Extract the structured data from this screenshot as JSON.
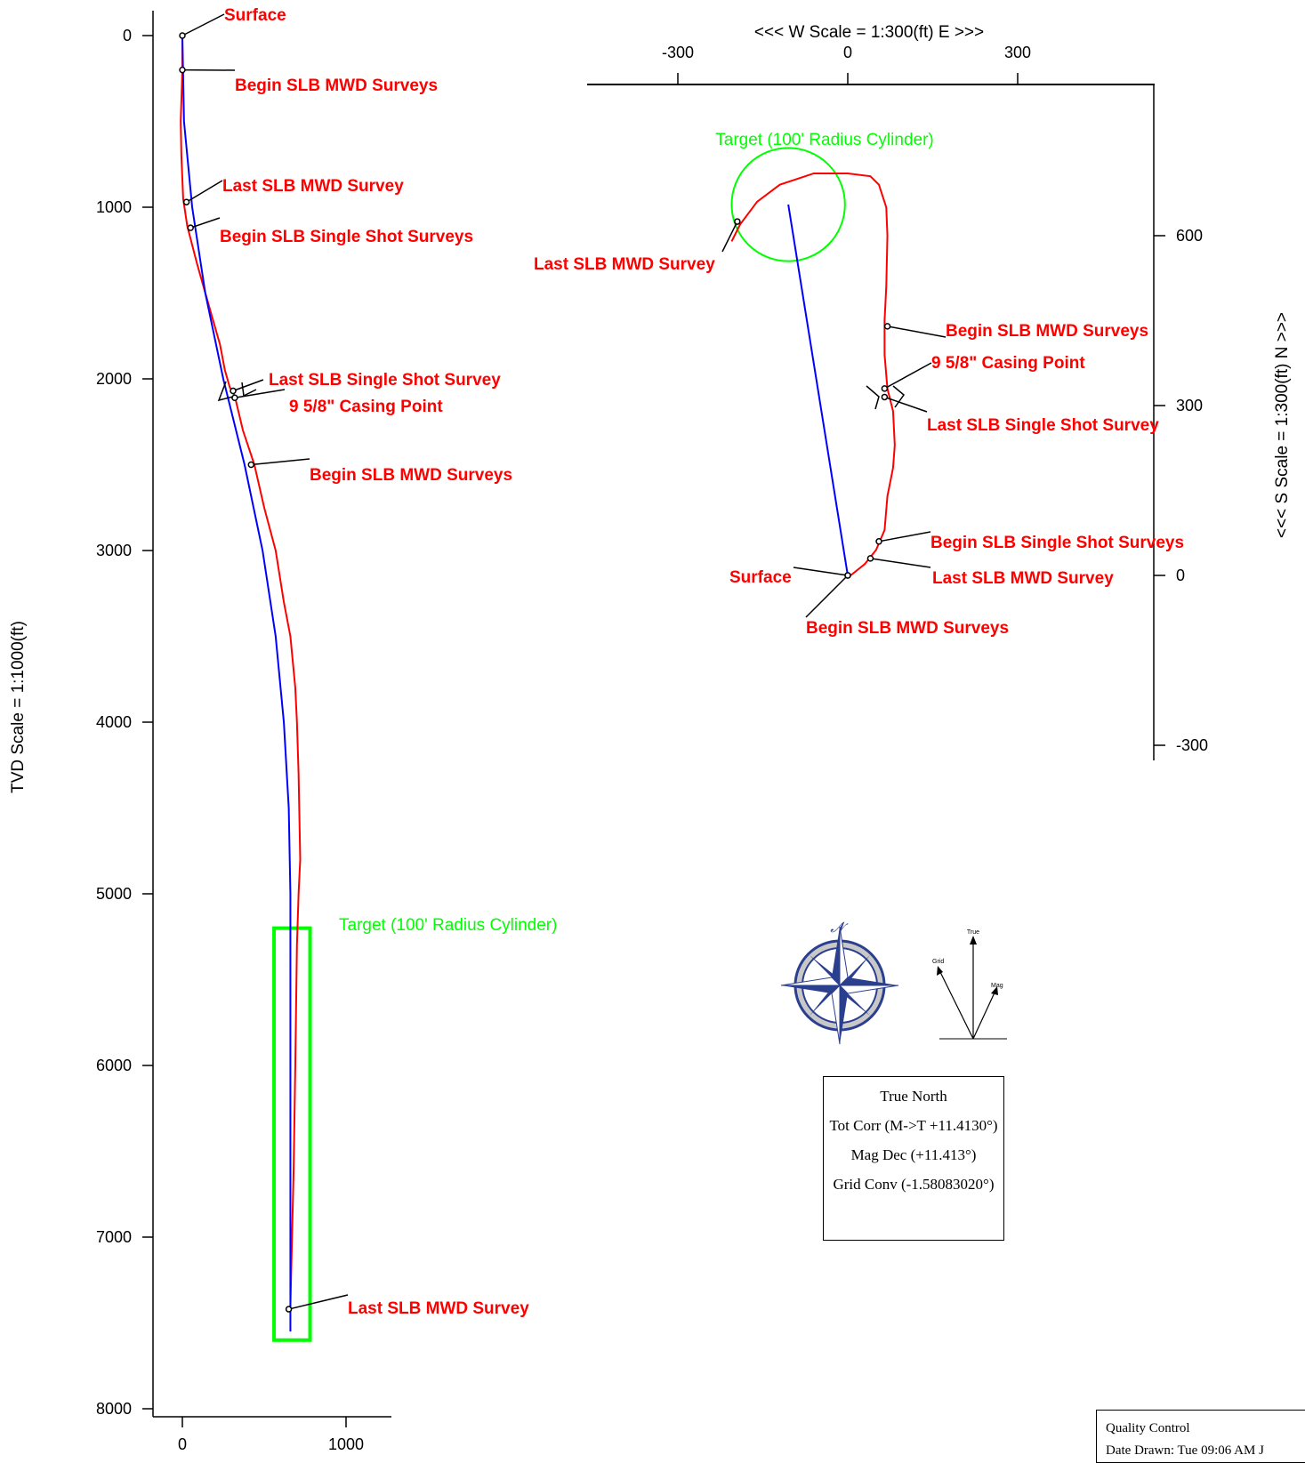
{
  "chart_data": [
    {
      "type": "line",
      "title": "",
      "ylabel": "TVD Scale = 1:1000(ft)",
      "xlabel": "",
      "xlim": [
        -170,
        1230
      ],
      "ylim": [
        -160,
        8150
      ],
      "x_ticks": [
        0,
        1000
      ],
      "y_ticks": [
        0,
        1000,
        2000,
        3000,
        4000,
        5000,
        6000,
        7000,
        8000
      ],
      "series": [
        {
          "color": "#ff0000",
          "points": [
            [
              0,
              0
            ],
            [
              0,
              200
            ],
            [
              -10,
              500
            ],
            [
              -6,
              700
            ],
            [
              5,
              950
            ],
            [
              30,
              1110
            ],
            [
              90,
              1330
            ],
            [
              170,
              1600
            ],
            [
              230,
              1800
            ],
            [
              260,
              1950
            ],
            [
              290,
              2050
            ],
            [
              320,
              2100
            ],
            [
              370,
              2300
            ],
            [
              440,
              2500
            ],
            [
              500,
              2750
            ],
            [
              570,
              3000
            ],
            [
              620,
              3300
            ],
            [
              660,
              3500
            ],
            [
              690,
              3800
            ],
            [
              700,
              4000
            ],
            [
              710,
              4300
            ],
            [
              720,
              4800
            ],
            [
              710,
              5000
            ],
            [
              700,
              5300
            ],
            [
              690,
              6000
            ],
            [
              680,
              6600
            ],
            [
              670,
              7000
            ],
            [
              660,
              7400
            ]
          ]
        },
        {
          "color": "#0000ff",
          "points": [
            [
              0,
              0
            ],
            [
              10,
              500
            ],
            [
              60,
              1000
            ],
            [
              140,
              1500
            ],
            [
              250,
              2000
            ],
            [
              380,
              2500
            ],
            [
              490,
              3000
            ],
            [
              570,
              3500
            ],
            [
              620,
              4000
            ],
            [
              650,
              4500
            ],
            [
              660,
              5000
            ],
            [
              660,
              5500
            ],
            [
              660,
              6000
            ],
            [
              660,
              6500
            ],
            [
              660,
              7000
            ],
            [
              660,
              7550
            ]
          ]
        }
      ],
      "markers": [
        {
          "label": "Surface",
          "x": 0,
          "y": 0
        },
        {
          "label": "Begin SLB MWD Surveys",
          "x": 0,
          "y": 200
        },
        {
          "label": "Last SLB MWD Survey",
          "x": 25,
          "y": 970
        },
        {
          "label": "Begin SLB Single Shot Surveys",
          "x": 50,
          "y": 1120
        },
        {
          "label": "Last SLB Single Shot Survey",
          "x": 310,
          "y": 2070
        },
        {
          "label": "9 5/8\" Casing Point",
          "x": 320,
          "y": 2110
        },
        {
          "label": "Begin SLB MWD Surveys",
          "x": 420,
          "y": 2500
        },
        {
          "label": "Last SLB MWD Survey",
          "x": 650,
          "y": 7420
        }
      ],
      "target": {
        "label": "Target (100' Radius Cylinder)",
        "x_range": [
          560,
          780
        ],
        "y_range": [
          5200,
          7600
        ]
      }
    },
    {
      "type": "line",
      "title": "<<<  W   Scale = 1:300(ft)   E  >>>",
      "ylabel": "<<<  S   Scale = 1:300(ft)   N  >>>",
      "xlim": [
        -460,
        540
      ],
      "ylim": [
        -330,
        870
      ],
      "x_ticks": [
        -300,
        0,
        300
      ],
      "y_ticks": [
        -300,
        0,
        300,
        600
      ],
      "series": [
        {
          "color": "#ff0000",
          "points": [
            [
              5,
              0
            ],
            [
              30,
              20
            ],
            [
              50,
              45
            ],
            [
              65,
              80
            ],
            [
              70,
              140
            ],
            [
              80,
              190
            ],
            [
              83,
              230
            ],
            [
              80,
              290
            ],
            [
              70,
              330
            ],
            [
              65,
              390
            ],
            [
              65,
              450
            ],
            [
              68,
              510
            ],
            [
              70,
              600
            ],
            [
              68,
              650
            ],
            [
              55,
              690
            ],
            [
              40,
              705
            ],
            [
              0,
              710
            ],
            [
              -60,
              710
            ],
            [
              -120,
              690
            ],
            [
              -160,
              660
            ],
            [
              -190,
              620
            ],
            [
              -205,
              590
            ]
          ]
        },
        {
          "color": "#0000ff",
          "points": [
            [
              0,
              0
            ],
            [
              -105,
              655
            ]
          ]
        }
      ],
      "markers": [
        {
          "label": "Surface",
          "x": 0,
          "y": 0
        },
        {
          "label": "Begin SLB MWD Surveys",
          "x": 0,
          "y": 0
        },
        {
          "label": "Last SLB MWD Survey",
          "x": 40,
          "y": 30
        },
        {
          "label": "Begin SLB Single Shot Surveys",
          "x": 55,
          "y": 60
        },
        {
          "label": "9 5/8\" Casing Point",
          "x": 65,
          "y": 330
        },
        {
          "label": "Last SLB Single Shot Survey",
          "x": 65,
          "y": 315
        },
        {
          "label": "Begin SLB MWD Surveys",
          "x": 70,
          "y": 440
        },
        {
          "label": "Last SLB MWD Survey",
          "x": -195,
          "y": 625
        }
      ],
      "target": {
        "label": "Target (100' Radius Cylinder)",
        "x": -105,
        "y": 655,
        "radius": 100
      }
    }
  ],
  "legend": {
    "north_symbol": "𝓝",
    "arrow_labels": {
      "true": "True",
      "grid": "Grid",
      "mag": "Mag"
    },
    "info_box": {
      "line1": "True North",
      "line2": "Tot Corr (M->T +11.4130°)",
      "line3": "Mag Dec (+11.413°)",
      "line4": "Grid Conv (-1.58083020°)"
    },
    "quality_control": {
      "title": "Quality Control",
      "line2": "Date Drawn: Tue 09:06 AM J"
    }
  },
  "colors": {
    "actual": "#ff0000",
    "plan": "#0000ff",
    "target": "#00ff00",
    "compass_blue": "#2b3f8f",
    "compass_grey": "#c8c8c8"
  }
}
